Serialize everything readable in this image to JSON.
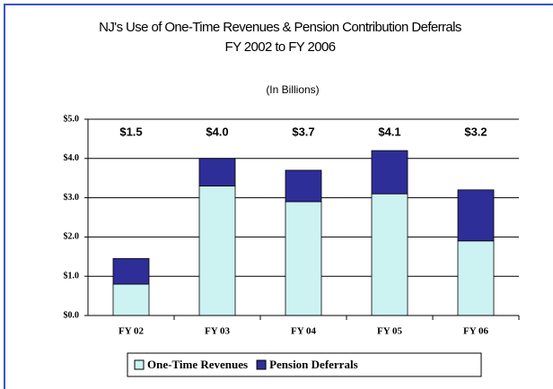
{
  "chart_data": {
    "type": "stacked_bar",
    "title": "NJ's Use of One-Time Revenues & Pension Contribution Deferrals",
    "subtitle": "FY 2002 to FY 2006",
    "note": "(In Billions)",
    "categories": [
      "FY 02",
      "FY 03",
      "FY 04",
      "FY 05",
      "FY 06"
    ],
    "series": [
      {
        "name": "One-Time Revenues",
        "color": "#ccf2f2",
        "values": [
          0.8,
          3.3,
          2.9,
          3.1,
          1.9
        ]
      },
      {
        "name": "Pension Deferrals",
        "color": "#2e2e99",
        "values": [
          0.65,
          0.7,
          0.8,
          1.1,
          1.3
        ]
      }
    ],
    "annotations": [
      "$1.5",
      "$4.0",
      "$3.7",
      "$4.1",
      "$3.2"
    ],
    "ylim": [
      0,
      5
    ],
    "yticks": [
      {
        "value": 0,
        "label": "$0.0"
      },
      {
        "value": 1,
        "label": "$1.0"
      },
      {
        "value": 2,
        "label": "$2.0"
      },
      {
        "value": 3,
        "label": "$3.0"
      },
      {
        "value": 4,
        "label": "$4.0"
      },
      {
        "value": 5,
        "label": "$5.0"
      }
    ],
    "grid": true,
    "legend": "bottom"
  }
}
